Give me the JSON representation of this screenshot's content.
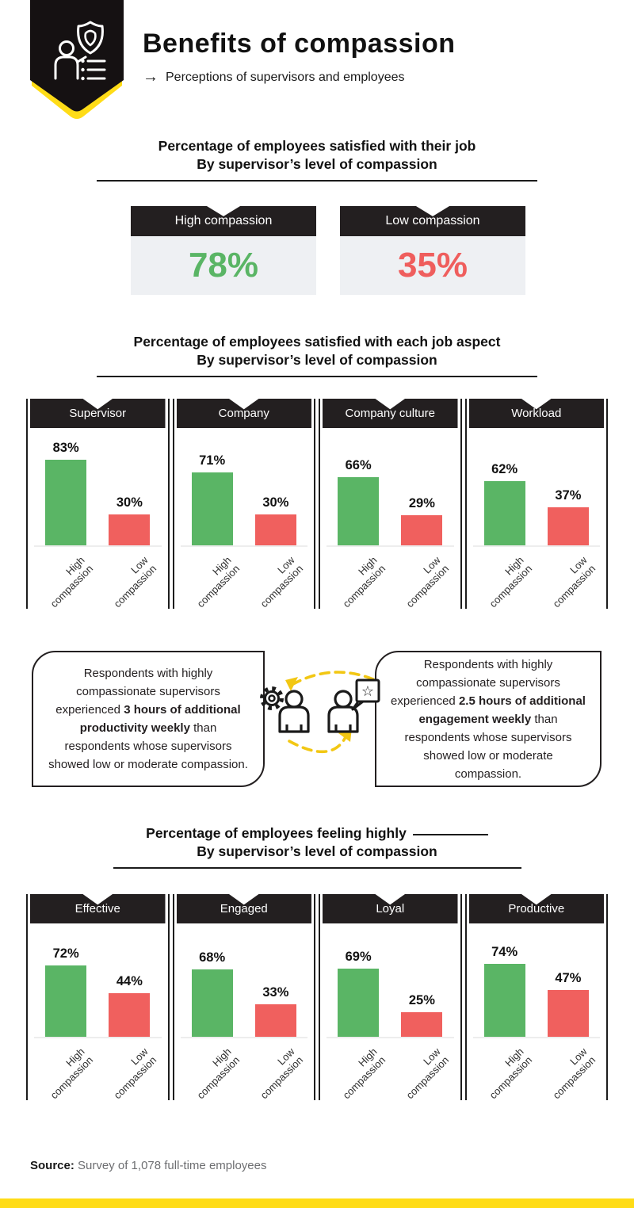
{
  "header": {
    "title": "Benefits of compassion",
    "arrow": "→",
    "subtitle": "Perceptions of supervisors and employees"
  },
  "colors": {
    "dark": "#231f20",
    "green": "#5ab565",
    "red": "#f0605e",
    "yellow": "#ffdc17",
    "card_bg": "#eef0f3",
    "source_gray": "#6d6e71"
  },
  "section_job": {
    "heading_line1": "Percentage of employees satisfied with their job",
    "heading_line2": "By supervisor’s level of compassion",
    "cards": [
      {
        "label": "High compassion",
        "value": "78%"
      },
      {
        "label": "Low compassion",
        "value": "35%"
      }
    ]
  },
  "section_aspects": {
    "heading_line1": "Percentage of employees satisfied with each job aspect",
    "heading_line2": "By supervisor’s level of compassion",
    "panels": [
      {
        "title": "Supervisor",
        "bars": [
          {
            "name": "High compassion",
            "value": 83,
            "display": "83%"
          },
          {
            "name": "Low compassion",
            "value": 30,
            "display": "30%"
          }
        ]
      },
      {
        "title": "Company",
        "bars": [
          {
            "name": "High compassion",
            "value": 71,
            "display": "71%"
          },
          {
            "name": "Low compassion",
            "value": 30,
            "display": "30%"
          }
        ]
      },
      {
        "title": "Company culture",
        "bars": [
          {
            "name": "High compassion",
            "value": 66,
            "display": "66%"
          },
          {
            "name": "Low compassion",
            "value": 29,
            "display": "29%"
          }
        ]
      },
      {
        "title": "Workload",
        "bars": [
          {
            "name": "High compassion",
            "value": 62,
            "display": "62%"
          },
          {
            "name": "Low compassion",
            "value": 37,
            "display": "37%"
          }
        ]
      }
    ]
  },
  "callouts": {
    "left": {
      "text_before": "Respondents with highly compassionate supervisors experienced ",
      "text_bold": "3 hours of additional productivity weekly",
      "text_after": " than respondents whose supervisors showed low or moderate compassion."
    },
    "right": {
      "text_before": "Respondents with highly compassionate supervisors experienced ",
      "text_bold": "2.5 hours of additional engagement weekly",
      "text_after": " than respondents whose supervisors showed low or moderate compassion."
    }
  },
  "section_feelings": {
    "heading_line1": "Percentage of employees feeling highly",
    "heading_line2": "By supervisor’s level of compassion",
    "panels": [
      {
        "title": "Effective",
        "bars": [
          {
            "name": "High compassion",
            "value": 72,
            "display": "72%"
          },
          {
            "name": "Low compassion",
            "value": 44,
            "display": "44%"
          }
        ]
      },
      {
        "title": "Engaged",
        "bars": [
          {
            "name": "High compassion",
            "value": 68,
            "display": "68%"
          },
          {
            "name": "Low compassion",
            "value": 33,
            "display": "33%"
          }
        ]
      },
      {
        "title": "Loyal",
        "bars": [
          {
            "name": "High compassion",
            "value": 69,
            "display": "69%"
          },
          {
            "name": "Low compassion",
            "value": 25,
            "display": "25%"
          }
        ]
      },
      {
        "title": "Productive",
        "bars": [
          {
            "name": "High compassion",
            "value": 74,
            "display": "74%"
          },
          {
            "name": "Low compassion",
            "value": 47,
            "display": "47%"
          }
        ]
      }
    ]
  },
  "footer": {
    "source_label": "Source:",
    "source_text": "Survey of 1,078 full-time employees"
  },
  "chart_data": [
    {
      "type": "bar",
      "title": "Percentage of employees satisfied with their job · By supervisor’s level of compassion",
      "categories": [
        "High compassion",
        "Low compassion"
      ],
      "values": [
        78,
        35
      ],
      "unit": "%",
      "ylim": [
        0,
        100
      ]
    },
    {
      "type": "bar",
      "title": "Percentage of employees satisfied with each job aspect · By supervisor’s level of compassion",
      "categories": [
        "Supervisor",
        "Company",
        "Company culture",
        "Workload"
      ],
      "series": [
        {
          "name": "High compassion",
          "values": [
            83,
            71,
            66,
            62
          ]
        },
        {
          "name": "Low compassion",
          "values": [
            30,
            30,
            29,
            37
          ]
        }
      ],
      "unit": "%",
      "ylim": [
        0,
        100
      ]
    },
    {
      "type": "bar",
      "title": "Percentage of employees feeling highly ___ · By supervisor’s level of compassion",
      "categories": [
        "Effective",
        "Engaged",
        "Loyal",
        "Productive"
      ],
      "series": [
        {
          "name": "High compassion",
          "values": [
            72,
            68,
            69,
            74
          ]
        },
        {
          "name": "Low compassion",
          "values": [
            44,
            33,
            25,
            47
          ]
        }
      ],
      "unit": "%",
      "ylim": [
        0,
        100
      ]
    }
  ]
}
